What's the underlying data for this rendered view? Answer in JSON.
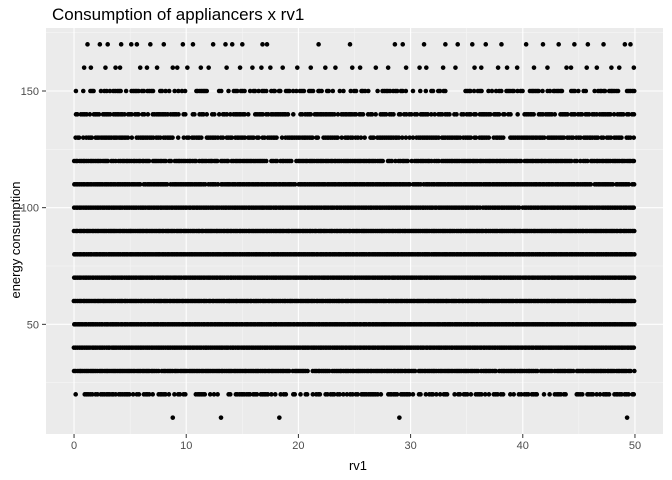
{
  "chart_data": {
    "type": "scatter",
    "title": "Consumption of appliancers x rv1",
    "xlabel": "rv1",
    "ylabel": "energy consumption",
    "xlim": [
      -2.5,
      52.5
    ],
    "ylim": [
      3,
      177
    ],
    "x_ticks": [
      0,
      10,
      20,
      30,
      40,
      50
    ],
    "y_ticks": [
      50,
      100,
      150
    ],
    "x_tick_labels": [
      "0",
      "10",
      "20",
      "30",
      "40",
      "50"
    ],
    "y_tick_labels": [
      "50",
      "100",
      "150"
    ],
    "grid": true,
    "background_color": "#ebebeb",
    "point_color": "#000000",
    "rows": [
      {
        "y": 170,
        "x_values": [
          1.2,
          2.3,
          3.0,
          4.2,
          5.1,
          5.6,
          6.8,
          8.0,
          9.7,
          10.6,
          12.4,
          13.5,
          14.1,
          15.0,
          16.8,
          17.2,
          21.8,
          24.6,
          28.6,
          29.3,
          31.2,
          33.1,
          34.2,
          35.5,
          36.7,
          38.1,
          40.3,
          41.8,
          43.2,
          44.6,
          45.8,
          47.2,
          49.1,
          49.6
        ]
      },
      {
        "y": 160,
        "x_values": [
          0.9,
          1.5,
          2.8,
          3.7,
          4.1,
          5.9,
          6.5,
          7.4,
          8.8,
          9.2,
          10.1,
          11.3,
          12.0,
          13.6,
          14.8,
          15.9,
          16.7,
          17.5,
          18.6,
          19.9,
          21.1,
          22.4,
          23.3,
          24.8,
          25.5,
          26.9,
          28.0,
          29.6,
          30.8,
          31.4,
          32.9,
          34.0,
          35.7,
          36.3,
          37.8,
          38.6,
          39.5,
          41.0,
          42.2,
          43.9,
          44.3,
          45.7,
          46.6,
          47.9,
          48.6,
          49.9
        ]
      }
    ],
    "dense_rows": [
      150,
      140,
      130,
      120,
      110,
      100,
      90,
      80,
      70,
      60,
      50,
      40,
      30,
      20
    ],
    "dense_row_coverage": {
      "150": 0.55,
      "140": 0.7,
      "130": 0.8,
      "120": 0.88,
      "110": 0.97,
      "100": 0.99,
      "90": 1.0,
      "80": 1.0,
      "70": 1.0,
      "60": 1.0,
      "50": 1.0,
      "40": 1.0,
      "30": 0.95,
      "20": 0.62
    },
    "sparse_row_10": [
      8.8,
      13.1,
      18.3,
      29.0,
      49.3
    ]
  }
}
